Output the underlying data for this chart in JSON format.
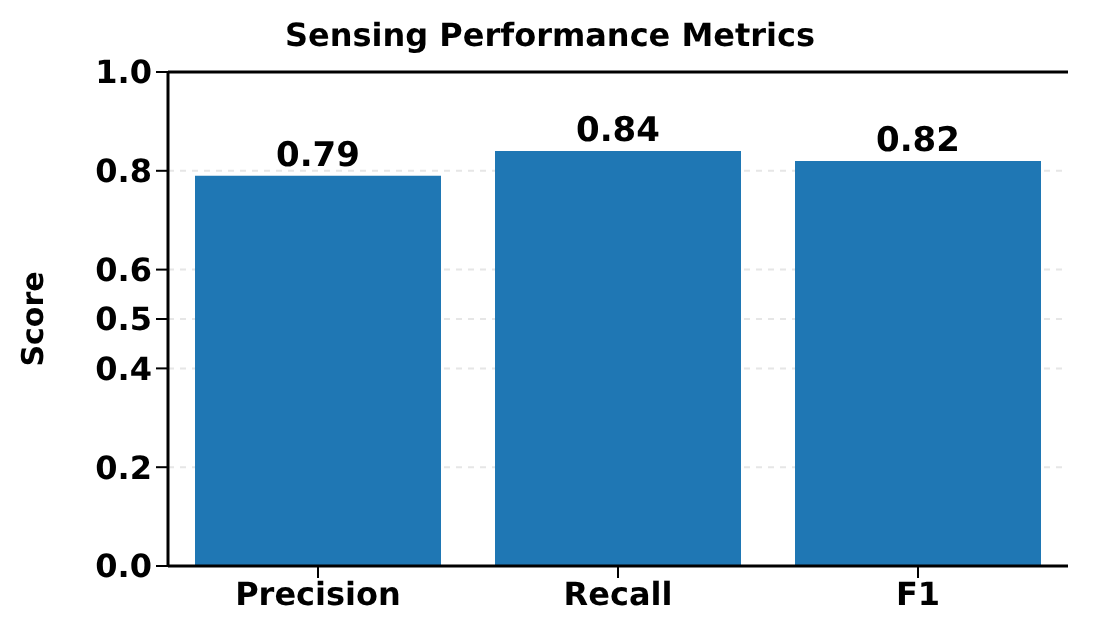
{
  "chart_data": {
    "type": "bar",
    "title": "Sensing Performance Metrics",
    "ylabel": "Score",
    "categories": [
      "Precision",
      "Recall",
      "F1"
    ],
    "values": [
      0.79,
      0.84,
      0.82
    ],
    "color": "#1f77b4",
    "ylim": [
      0,
      1.0
    ],
    "yticks": [
      {
        "value": 0,
        "label": "0.0"
      },
      {
        "value": 0.2,
        "label": "0.2"
      },
      {
        "value": 0.4,
        "label": "0.4"
      },
      {
        "value": 0.5,
        "label": "0.5"
      },
      {
        "value": 0.6,
        "label": "0.6"
      },
      {
        "value": 0.8,
        "label": "0.8"
      },
      {
        "value": 1.0,
        "label": "1.0"
      }
    ],
    "grid": "y",
    "data_labels": true
  }
}
